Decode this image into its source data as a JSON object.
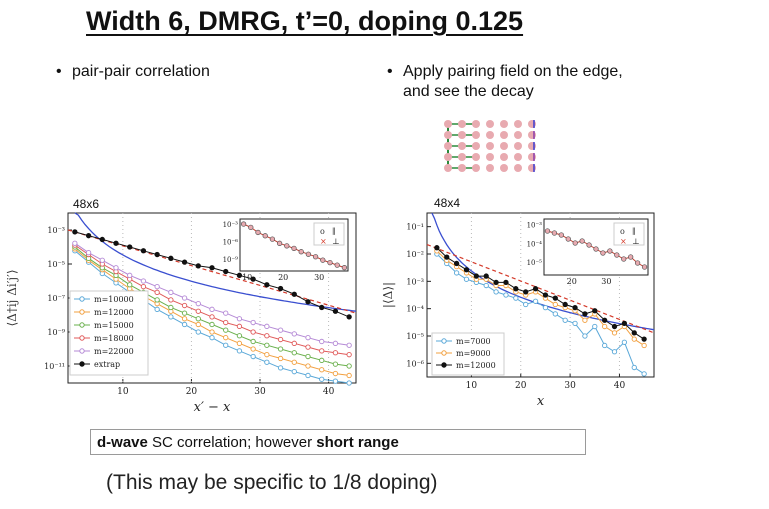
{
  "slide": {
    "title": "Width 6, DMRG, t’=0, doping 0.125",
    "bullet_left": "pair-pair correlation",
    "bullet_right_line1": "Apply pairing field on the edge,",
    "bullet_right_line2": "and see the decay",
    "bullet_symbol": "•",
    "summary_bold1": "d-wave",
    "summary_mid": " SC correlation; however ",
    "summary_bold2": "short range",
    "footnote": "(This may be specific to 1/8 doping)"
  },
  "lattice_icon": {
    "colors": {
      "site": "#e8aab0",
      "bond": "#2a8a3a",
      "arrow_up": "#3a3ad0",
      "arrow_down": "#8a3aaa"
    },
    "rows": 5,
    "cols": 7
  },
  "chart_data": [
    {
      "type": "line",
      "panel_label": "48x6",
      "xlabel": "x′ − x",
      "ylabel": "⟨Δ†ij Δi′j′⟩",
      "x_ticks": [
        "10",
        "20",
        "30",
        "40"
      ],
      "y_ticks": [
        "10⁻³",
        "10⁻⁵",
        "10⁻⁷",
        "10⁻⁹",
        "10⁻¹¹"
      ],
      "xlim": [
        2,
        44
      ],
      "ylim_log10": [
        -11,
        -2
      ],
      "series": [
        {
          "name": "m=10000",
          "color": "#5aa8d8",
          "x": [
            3,
            5,
            7,
            9,
            11,
            13,
            15,
            17,
            19,
            21,
            23,
            25,
            27,
            29,
            31,
            33,
            35,
            37,
            39,
            41,
            43
          ],
          "log10_y": [
            -4.0,
            -4.6,
            -5.2,
            -5.7,
            -6.2,
            -6.6,
            -7.1,
            -7.5,
            -7.9,
            -8.3,
            -8.6,
            -9.0,
            -9.3,
            -9.6,
            -9.9,
            -10.2,
            -10.4,
            -10.6,
            -10.8,
            -10.9,
            -11.0
          ]
        },
        {
          "name": "m=12000",
          "color": "#f2a040",
          "x": [
            3,
            5,
            7,
            9,
            11,
            13,
            15,
            17,
            19,
            21,
            23,
            25,
            27,
            29,
            31,
            33,
            35,
            37,
            39,
            41,
            43
          ],
          "log10_y": [
            -3.9,
            -4.5,
            -5.0,
            -5.5,
            -6.0,
            -6.4,
            -6.8,
            -7.2,
            -7.6,
            -7.9,
            -8.3,
            -8.6,
            -8.9,
            -9.2,
            -9.5,
            -9.7,
            -9.9,
            -10.1,
            -10.3,
            -10.5,
            -10.6
          ]
        },
        {
          "name": "m=15000",
          "color": "#6ab04c",
          "x": [
            3,
            5,
            7,
            9,
            11,
            13,
            15,
            17,
            19,
            21,
            23,
            25,
            27,
            29,
            31,
            33,
            35,
            37,
            39,
            41,
            43
          ],
          "log10_y": [
            -3.8,
            -4.4,
            -4.9,
            -5.3,
            -5.8,
            -6.2,
            -6.6,
            -7.0,
            -7.3,
            -7.6,
            -7.9,
            -8.2,
            -8.5,
            -8.8,
            -9.0,
            -9.2,
            -9.4,
            -9.6,
            -9.8,
            -10.0,
            -10.1
          ]
        },
        {
          "name": "m=18000",
          "color": "#e05a5a",
          "x": [
            3,
            5,
            7,
            9,
            11,
            13,
            15,
            17,
            19,
            21,
            23,
            25,
            27,
            29,
            31,
            33,
            35,
            37,
            39,
            41,
            43
          ],
          "log10_y": [
            -3.7,
            -4.2,
            -4.7,
            -5.1,
            -5.5,
            -5.9,
            -6.2,
            -6.6,
            -6.9,
            -7.2,
            -7.5,
            -7.8,
            -8.0,
            -8.3,
            -8.5,
            -8.7,
            -8.9,
            -9.1,
            -9.3,
            -9.4,
            -9.5
          ]
        },
        {
          "name": "m=22000",
          "color": "#b58ad6",
          "x": [
            3,
            5,
            7,
            9,
            11,
            13,
            15,
            17,
            19,
            21,
            23,
            25,
            27,
            29,
            31,
            33,
            35,
            37,
            39,
            41,
            43
          ],
          "log10_y": [
            -3.6,
            -4.1,
            -4.5,
            -4.9,
            -5.3,
            -5.6,
            -5.9,
            -6.2,
            -6.5,
            -6.8,
            -7.1,
            -7.3,
            -7.6,
            -7.8,
            -8.0,
            -8.2,
            -8.4,
            -8.6,
            -8.8,
            -8.9,
            -9.0
          ]
        },
        {
          "name": "extrap",
          "color": "#111111",
          "filled": true,
          "x": [
            3,
            5,
            7,
            9,
            11,
            13,
            15,
            17,
            19,
            21,
            23,
            25,
            27,
            29,
            31,
            33,
            35,
            37,
            39,
            41,
            43
          ],
          "log10_y": [
            -3.0,
            -3.2,
            -3.4,
            -3.6,
            -3.8,
            -4.0,
            -4.2,
            -4.4,
            -4.6,
            -4.8,
            -4.9,
            -5.1,
            -5.3,
            -5.5,
            -5.8,
            -6.0,
            -6.3,
            -6.7,
            -7.0,
            -7.2,
            -7.5
          ]
        }
      ],
      "inset": {
        "x_ticks": [
          "10",
          "20",
          "30"
        ],
        "y_ticks": [
          "10⁻³",
          "10⁻⁶",
          "10⁻⁹"
        ],
        "legend": [
          {
            "marker": "o",
            "label": "∥"
          },
          {
            "marker": "×",
            "label": "⊥"
          }
        ],
        "x": [
          9,
          11,
          13,
          15,
          17,
          19,
          21,
          23,
          25,
          27,
          29,
          31,
          33,
          35,
          37
        ],
        "log10_y": [
          -3.9,
          -4.3,
          -4.9,
          -5.3,
          -5.7,
          -6.2,
          -6.5,
          -6.8,
          -7.2,
          -7.5,
          -7.8,
          -8.2,
          -8.5,
          -8.8,
          -9.1
        ]
      }
    },
    {
      "type": "line",
      "panel_label": "48x4",
      "xlabel": "x",
      "ylabel": "|⟨Δ⟩|",
      "x_ticks": [
        "10",
        "20",
        "30",
        "40"
      ],
      "y_ticks": [
        "10⁻¹",
        "10⁻²",
        "10⁻³",
        "10⁻⁴",
        "10⁻⁵",
        "10⁻⁶"
      ],
      "xlim": [
        1,
        47
      ],
      "ylim_log10": [
        -6.2,
        -1
      ],
      "series": [
        {
          "name": "m=7000",
          "color": "#5aa8d8",
          "x": [
            3,
            5,
            7,
            9,
            11,
            13,
            15,
            17,
            19,
            21,
            23,
            25,
            27,
            29,
            31,
            33,
            35,
            37,
            39,
            41,
            43,
            45
          ],
          "log10_y": [
            -2.3,
            -2.6,
            -2.9,
            -3.1,
            -3.2,
            -3.3,
            -3.5,
            -3.6,
            -3.7,
            -3.9,
            -3.8,
            -4.0,
            -4.2,
            -4.4,
            -4.5,
            -4.9,
            -4.6,
            -5.2,
            -5.4,
            -5.1,
            -5.9,
            -6.1
          ]
        },
        {
          "name": "m=9000",
          "color": "#f2a040",
          "x": [
            3,
            5,
            7,
            9,
            11,
            13,
            15,
            17,
            19,
            21,
            23,
            25,
            27,
            29,
            31,
            33,
            35,
            37,
            39,
            41,
            43,
            45
          ],
          "log10_y": [
            -2.2,
            -2.5,
            -2.7,
            -2.9,
            -3.1,
            -3.1,
            -3.3,
            -3.3,
            -3.5,
            -3.6,
            -3.5,
            -3.7,
            -3.9,
            -4.0,
            -4.1,
            -4.4,
            -4.2,
            -4.6,
            -4.8,
            -4.6,
            -5.0,
            -5.2
          ]
        },
        {
          "name": "m=12000",
          "color": "#111111",
          "filled": true,
          "x": [
            3,
            5,
            7,
            9,
            11,
            13,
            15,
            17,
            19,
            21,
            23,
            25,
            27,
            29,
            31,
            33,
            35,
            37,
            39,
            41,
            43,
            45
          ],
          "log10_y": [
            -2.1,
            -2.4,
            -2.6,
            -2.8,
            -3.0,
            -3.0,
            -3.2,
            -3.2,
            -3.4,
            -3.5,
            -3.4,
            -3.6,
            -3.7,
            -3.9,
            -4.0,
            -4.2,
            -4.1,
            -4.4,
            -4.6,
            -4.5,
            -4.8,
            -5.0
          ]
        }
      ],
      "inset": {
        "x_ticks": [
          "20",
          "30"
        ],
        "y_ticks": [
          "10⁻³",
          "10⁻⁴",
          "10⁻⁵"
        ],
        "legend": [
          {
            "marker": "o",
            "label": "∥"
          },
          {
            "marker": "×",
            "label": "⊥"
          }
        ],
        "x": [
          13,
          15,
          17,
          19,
          21,
          23,
          25,
          27,
          29,
          31,
          33,
          35,
          37,
          39,
          41
        ],
        "log10_y": [
          -3.1,
          -3.2,
          -3.3,
          -3.5,
          -3.7,
          -3.6,
          -3.8,
          -4.0,
          -4.2,
          -4.1,
          -4.3,
          -4.5,
          -4.4,
          -4.7,
          -4.9
        ]
      }
    }
  ]
}
